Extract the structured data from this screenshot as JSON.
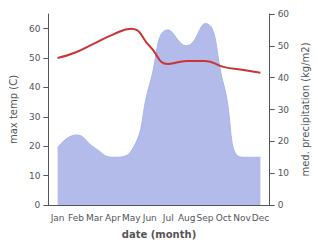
{
  "chart_data": {
    "type": "line",
    "xlabel": "date (month)",
    "ylabel": "max temp (C)",
    "y2label": "med. precipitation (kg/m2)",
    "categories": [
      "Jan",
      "Feb",
      "Mar",
      "Apr",
      "May",
      "Jun",
      "Jul",
      "Aug",
      "Sep",
      "Oct",
      "Nov",
      "Dec"
    ],
    "series": [
      {
        "type": "area",
        "color": "#aab4e8",
        "axis": "y2",
        "values": [
          18,
          22,
          18,
          15,
          17,
          38,
          55,
          50,
          57,
          38,
          15,
          15
        ]
      },
      {
        "type": "line",
        "color": "#cc3333",
        "values": [
          50,
          52,
          55,
          58,
          60,
          54,
          48,
          49,
          49,
          47,
          46,
          45
        ]
      }
    ],
    "ylim": [
      0,
      65
    ],
    "yticks": [
      0,
      10,
      20,
      30,
      40,
      50,
      60
    ],
    "y2lim": [
      0,
      60
    ],
    "y2ticks": [
      0,
      10,
      20,
      30,
      40,
      50,
      60
    ],
    "grid": false
  }
}
